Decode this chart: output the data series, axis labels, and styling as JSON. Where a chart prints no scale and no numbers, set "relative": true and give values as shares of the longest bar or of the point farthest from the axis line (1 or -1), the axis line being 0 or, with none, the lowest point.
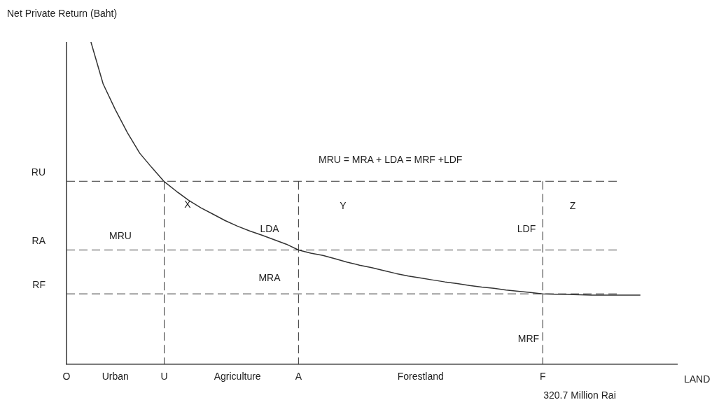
{
  "chart_data": {
    "type": "line",
    "relative": true,
    "ylabel": "Net Private Return (Baht)",
    "xlabel": "LAND",
    "categories": [
      "O",
      null,
      null,
      null,
      "Urban",
      null,
      null,
      null,
      "U",
      null,
      null,
      null,
      null,
      null,
      "Agriculture",
      null,
      null,
      null,
      null,
      "A",
      null,
      null,
      null,
      null,
      null,
      null,
      null,
      null,
      null,
      "Forestland",
      null,
      null,
      null,
      null,
      null,
      null,
      null,
      null,
      null,
      "F",
      null,
      null,
      null,
      null,
      null,
      null,
      null,
      null,
      null,
      null,
      null
    ],
    "series": [
      {
        "color": "#333333",
        "values": [
          null,
          null,
          1.0,
          0.87,
          0.79,
          0.718,
          0.655,
          0.61,
          0.567,
          0.537,
          0.509,
          0.486,
          0.466,
          0.446,
          0.429,
          0.414,
          0.401,
          0.387,
          0.373,
          0.355,
          0.345,
          0.338,
          0.328,
          0.317,
          0.308,
          0.3,
          0.291,
          0.282,
          0.274,
          0.268,
          0.262,
          0.256,
          0.251,
          0.245,
          0.24,
          0.236,
          0.231,
          0.227,
          0.223,
          0.219,
          0.218,
          0.217,
          0.216,
          0.215,
          0.215,
          0.215,
          0.215,
          0.215,
          null,
          null,
          null
        ]
      }
    ],
    "ref_lines": [
      {
        "axis": "y",
        "value": 0.568,
        "label": "RU",
        "line_style": "dashed"
      },
      {
        "axis": "y",
        "value": 0.355,
        "label": "RA",
        "line_style": "dashed"
      },
      {
        "axis": "y",
        "value": 0.219,
        "label": "RF",
        "line_style": "dashed"
      },
      {
        "axis": "x",
        "value": "U",
        "line_style": "dashed"
      },
      {
        "axis": "x",
        "value": "A",
        "line_style": "dashed"
      },
      {
        "axis": "x",
        "value": "F",
        "line_style": "dashed"
      }
    ],
    "annotations": [
      "MRU = MRA + LDA = MRF +LDF",
      "320.7 Million Rai",
      "X",
      "Y",
      "Z",
      "MRU",
      "LDA",
      "MRA",
      "LDF",
      "MRF"
    ],
    "grid": false,
    "legend": false,
    "marker": "none",
    "line_style": "solid"
  }
}
